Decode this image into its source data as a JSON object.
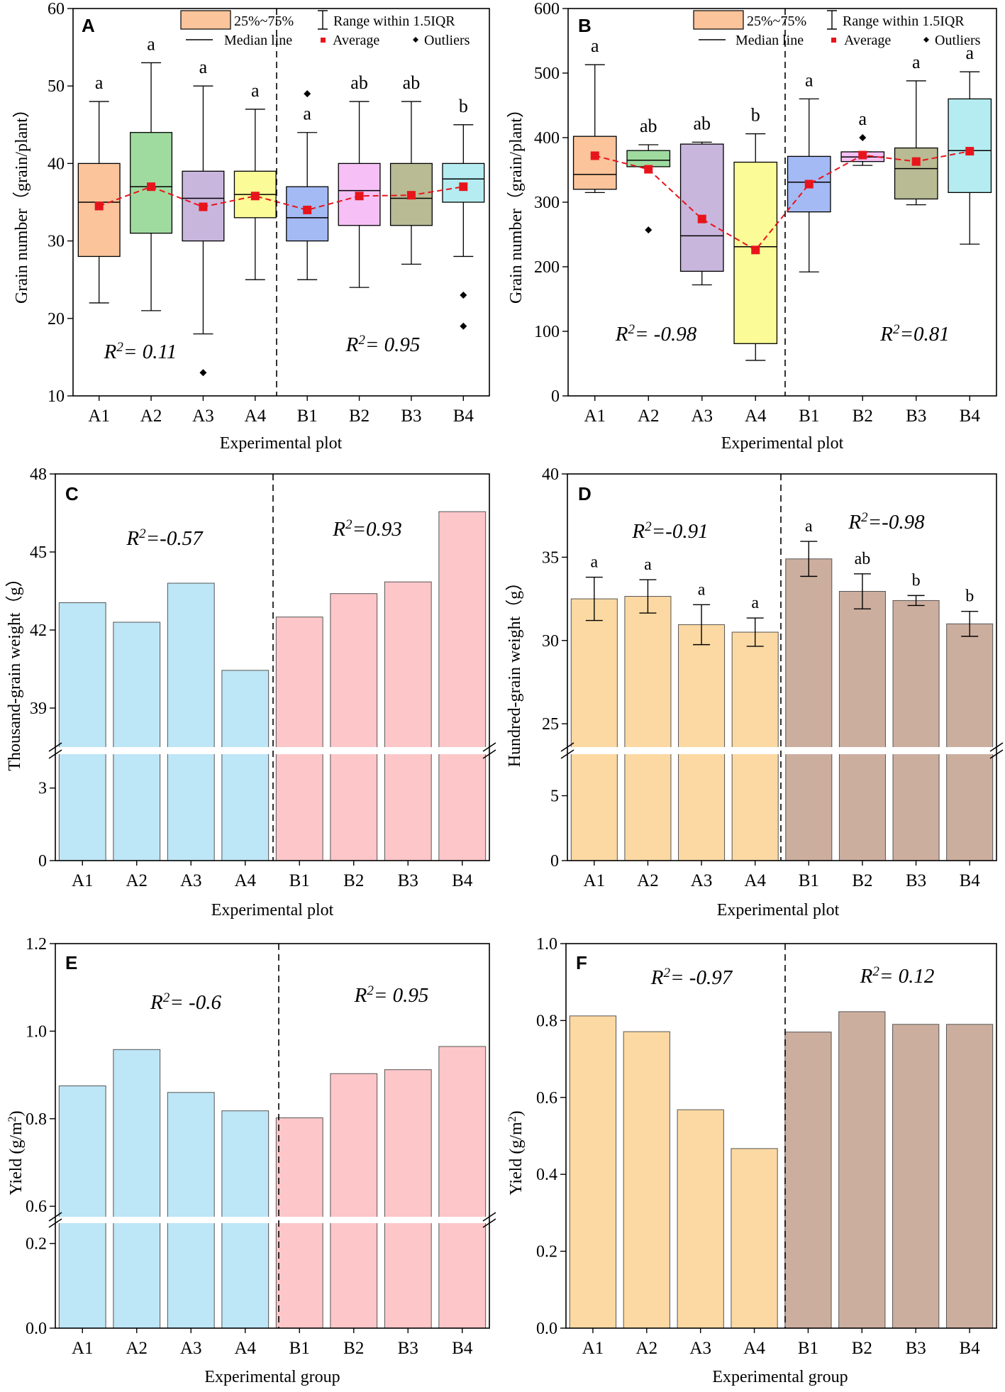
{
  "colors": {
    "A_box": [
      "#fbc49b",
      "#9fdb9f",
      "#c9b6dd",
      "#fbfb98"
    ],
    "B_box": [
      "#a4baf5",
      "#f6c0f6",
      "#b8bb93",
      "#b4ecf1"
    ],
    "light_blue": "#bde6f7",
    "light_pink": "#fdc6c9",
    "light_orange": "#fcd9a2",
    "tan_brown": "#ccae9f",
    "avg_marker": "#e8141b"
  },
  "chart_data": [
    {
      "panel": "A",
      "type": "box",
      "xlabel": "Experimental plot",
      "ylabel": "Grain number（grain/plant）",
      "ylim": [
        10,
        60
      ],
      "yticks": [
        10,
        20,
        30,
        40,
        50,
        60
      ],
      "categories": [
        "A1",
        "A2",
        "A3",
        "A4",
        "B1",
        "B2",
        "B3",
        "B4"
      ],
      "whisker_low": [
        22,
        21,
        18,
        25,
        25,
        24,
        27,
        28
      ],
      "q1": [
        28,
        31,
        30,
        33,
        30,
        32,
        32,
        35
      ],
      "median": [
        35,
        37,
        35.5,
        36,
        33,
        36.5,
        35.5,
        38
      ],
      "q3": [
        40,
        44,
        39,
        39,
        37,
        40,
        40,
        40
      ],
      "whisker_high": [
        48,
        53,
        50,
        47,
        44,
        48,
        48,
        45
      ],
      "mean": [
        34.5,
        37,
        34.4,
        35.8,
        34,
        35.8,
        35.9,
        37
      ],
      "outliers": [
        [],
        [],
        [
          13
        ],
        [],
        [
          49
        ],
        [],
        [],
        [
          23,
          19
        ]
      ],
      "letters": [
        "a",
        "a",
        "a",
        "a",
        "a",
        "ab",
        "ab",
        "b"
      ],
      "r2_labels": [
        "= 0.11",
        "= 0.95"
      ],
      "legend": {
        "box": "25%~75%",
        "range": "Range within 1.5IQR",
        "median": "Median line",
        "average": "Average",
        "outliers": "Outliers"
      }
    },
    {
      "panel": "B",
      "type": "box",
      "xlabel": "Experimental plot",
      "ylabel": "Grain number（grain/plant）",
      "ylim": [
        0,
        600
      ],
      "yticks": [
        0,
        100,
        200,
        300,
        400,
        500,
        600
      ],
      "categories": [
        "A1",
        "A2",
        "A3",
        "A4",
        "B1",
        "B2",
        "B3",
        "B4"
      ],
      "whisker_low": [
        315,
        357,
        172,
        55,
        192,
        357,
        296,
        235
      ],
      "q1": [
        320,
        355,
        193,
        81,
        285,
        363,
        305,
        315
      ],
      "median": [
        343,
        365,
        248,
        231,
        331,
        370,
        352,
        380
      ],
      "q3": [
        402,
        380,
        390,
        362,
        371,
        378,
        384,
        460
      ],
      "whisker_high": [
        513,
        389,
        393,
        406,
        460,
        378,
        488,
        502
      ],
      "mean": [
        372,
        351,
        274,
        226,
        328,
        373,
        363,
        379
      ],
      "outliers": [
        [],
        [
          257
        ],
        [],
        [],
        [],
        [
          400
        ],
        [],
        []
      ],
      "letters": [
        "a",
        "ab",
        "ab",
        "b",
        "a",
        "a",
        "a",
        "a"
      ],
      "r2_labels": [
        "= -0.98",
        "=0.81"
      ],
      "legend": {
        "box": "25%~75%",
        "range": "Range within 1.5IQR",
        "median": "Median line",
        "average": "Average",
        "outliers": "Outliers"
      }
    },
    {
      "panel": "C",
      "type": "bar",
      "xlabel": "Experimental plot",
      "ylabel": "Thousand-grain weight（g）",
      "categories": [
        "A1",
        "A2",
        "A3",
        "A4",
        "B1",
        "B2",
        "B3",
        "B4"
      ],
      "values": [
        43.05,
        42.3,
        43.8,
        40.45,
        42.5,
        43.4,
        43.85,
        46.55
      ],
      "upper_axis": {
        "range": [
          37.5,
          48
        ],
        "ticks": [
          39,
          42,
          45,
          48
        ]
      },
      "lower_axis": {
        "range": [
          0,
          4.4
        ],
        "ticks": [
          0,
          3
        ]
      },
      "r2_labels": [
        "=-0.57",
        "=0.93"
      ]
    },
    {
      "panel": "D",
      "type": "bar",
      "xlabel": "Experimental plot",
      "ylabel": "Hundred-grain weight（g）",
      "categories": [
        "A1",
        "A2",
        "A3",
        "A4",
        "B1",
        "B2",
        "B3",
        "B4"
      ],
      "values": [
        32.5,
        32.65,
        30.95,
        30.5,
        34.9,
        32.95,
        32.4,
        31.0
      ],
      "errors": [
        1.3,
        1.0,
        1.2,
        0.85,
        1.05,
        1.05,
        0.3,
        0.75
      ],
      "letters": [
        "a",
        "a",
        "a",
        "a",
        "a",
        "ab",
        "b",
        "b"
      ],
      "upper_axis": {
        "range": [
          23.6,
          40
        ],
        "ticks": [
          25,
          30,
          35,
          40
        ]
      },
      "lower_axis": {
        "range": [
          0,
          8.2
        ],
        "ticks": [
          0,
          5
        ]
      },
      "r2_labels": [
        "=-0.91",
        "=-0.98"
      ]
    },
    {
      "panel": "E",
      "type": "bar",
      "xlabel": "Experimental group",
      "ylabel": "Yield (g/m",
      "ylabel_sup": "2",
      "categories": [
        "A1",
        "A2",
        "A3",
        "A4",
        "B1",
        "B2",
        "B3",
        "B4"
      ],
      "values": [
        0.875,
        0.958,
        0.86,
        0.818,
        0.802,
        0.903,
        0.912,
        0.965
      ],
      "upper_axis": {
        "range": [
          0.576,
          1.2
        ],
        "ticks": [
          "0.6",
          "0.8",
          "1.0",
          "1.2"
        ]
      },
      "lower_axis": {
        "range": [
          0,
          0.248
        ],
        "ticks": [
          "0.0",
          "0.2"
        ]
      },
      "r2_labels": [
        "= -0.6",
        "= 0.95"
      ]
    },
    {
      "panel": "F",
      "type": "bar",
      "xlabel": "Experimental group",
      "ylabel": "Yield (g/m",
      "ylabel_sup": "2",
      "categories": [
        "A1",
        "A2",
        "A3",
        "A4",
        "B1",
        "B2",
        "B3",
        "B4"
      ],
      "values": [
        0.812,
        0.771,
        0.568,
        0.467,
        0.77,
        0.823,
        0.79,
        0.79
      ],
      "ylim": [
        0,
        1.0
      ],
      "yticks": [
        "0.0",
        "0.2",
        "0.4",
        "0.6",
        "0.8",
        "1.0"
      ],
      "r2_labels": [
        "= -0.97",
        "= 0.12"
      ]
    }
  ]
}
